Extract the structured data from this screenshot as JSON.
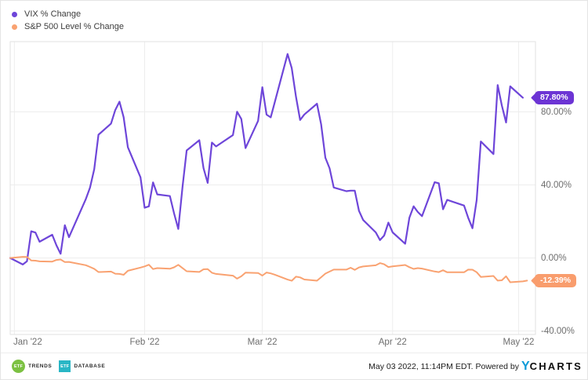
{
  "legend_note": "two clickable legend entries top-left",
  "chart_data": {
    "type": "line",
    "title": "",
    "xlabel": "",
    "ylabel": "",
    "grid": true,
    "legend_position": "top-left",
    "x_axis": {
      "min": "2021-12-31",
      "max": "2022-05-05",
      "ticks": [
        {
          "label": "Jan '22",
          "date": "2022-01-01"
        },
        {
          "label": "Feb '22",
          "date": "2022-02-01"
        },
        {
          "label": "Mar '22",
          "date": "2022-03-01"
        },
        {
          "label": "Apr '22",
          "date": "2022-04-01"
        },
        {
          "label": "May '22",
          "date": "2022-05-01"
        }
      ]
    },
    "y_axis": {
      "min": -41.9,
      "max": 118.5,
      "ticks": [
        {
          "label": "80.00%",
          "value": 80
        },
        {
          "label": "40.00%",
          "value": 40
        },
        {
          "label": "0.00%",
          "value": 0
        },
        {
          "label": "-40.00%",
          "value": -40
        }
      ]
    },
    "series": [
      {
        "name": "VIX % Change",
        "color": "#6e46d9",
        "badge_color": "#6c34d4",
        "end_label": "87.80%",
        "points": [
          [
            "2021-12-31",
            0
          ],
          [
            "2022-01-03",
            -3.6
          ],
          [
            "2022-01-04",
            -1.8
          ],
          [
            "2022-01-05",
            14.6
          ],
          [
            "2022-01-06",
            13.9
          ],
          [
            "2022-01-07",
            8.9
          ],
          [
            "2022-01-10",
            12.7
          ],
          [
            "2022-01-11",
            6.9
          ],
          [
            "2022-01-12",
            2.3
          ],
          [
            "2022-01-13",
            17.9
          ],
          [
            "2022-01-14",
            11.4
          ],
          [
            "2022-01-18",
            32.3
          ],
          [
            "2022-01-19",
            38.5
          ],
          [
            "2022-01-20",
            48.6
          ],
          [
            "2022-01-21",
            67.5
          ],
          [
            "2022-01-24",
            73.6
          ],
          [
            "2022-01-25",
            81.0
          ],
          [
            "2022-01-26",
            85.6
          ],
          [
            "2022-01-27",
            77.1
          ],
          [
            "2022-01-28",
            60.6
          ],
          [
            "2022-01-31",
            44.2
          ],
          [
            "2022-02-01",
            27.5
          ],
          [
            "2022-02-02",
            28.3
          ],
          [
            "2022-02-03",
            41.4
          ],
          [
            "2022-02-04",
            34.8
          ],
          [
            "2022-02-07",
            33.9
          ],
          [
            "2022-02-08",
            24.5
          ],
          [
            "2022-02-09",
            15.9
          ],
          [
            "2022-02-10",
            38.9
          ],
          [
            "2022-02-11",
            58.9
          ],
          [
            "2022-02-14",
            64.5
          ],
          [
            "2022-02-15",
            49.2
          ],
          [
            "2022-02-16",
            41.1
          ],
          [
            "2022-02-17",
            63.2
          ],
          [
            "2022-02-18",
            61.1
          ],
          [
            "2022-02-22",
            67.3
          ],
          [
            "2022-02-23",
            80.1
          ],
          [
            "2022-02-24",
            76.1
          ],
          [
            "2022-02-25",
            60.2
          ],
          [
            "2022-02-28",
            75.1
          ],
          [
            "2022-03-01",
            93.5
          ],
          [
            "2022-03-02",
            78.5
          ],
          [
            "2022-03-03",
            77.0
          ],
          [
            "2022-03-04",
            85.7
          ],
          [
            "2022-03-07",
            111.7
          ],
          [
            "2022-03-08",
            104.0
          ],
          [
            "2022-03-09",
            88.4
          ],
          [
            "2022-03-10",
            75.6
          ],
          [
            "2022-03-11",
            78.6
          ],
          [
            "2022-03-14",
            84.5
          ],
          [
            "2022-03-15",
            73.2
          ],
          [
            "2022-03-16",
            54.9
          ],
          [
            "2022-03-17",
            49.1
          ],
          [
            "2022-03-18",
            38.6
          ],
          [
            "2022-03-21",
            36.6
          ],
          [
            "2022-03-22",
            36.9
          ],
          [
            "2022-03-23",
            36.9
          ],
          [
            "2022-03-24",
            25.8
          ],
          [
            "2022-03-25",
            20.8
          ],
          [
            "2022-03-28",
            14.0
          ],
          [
            "2022-03-29",
            9.8
          ],
          [
            "2022-03-30",
            12.3
          ],
          [
            "2022-03-31",
            19.4
          ],
          [
            "2022-04-01",
            14.0
          ],
          [
            "2022-04-04",
            7.8
          ],
          [
            "2022-04-05",
            22.1
          ],
          [
            "2022-04-06",
            28.3
          ],
          [
            "2022-04-07",
            25.2
          ],
          [
            "2022-04-08",
            22.9
          ],
          [
            "2022-04-11",
            41.5
          ],
          [
            "2022-04-12",
            40.9
          ],
          [
            "2022-04-13",
            26.7
          ],
          [
            "2022-04-14",
            31.8
          ],
          [
            "2022-04-18",
            28.7
          ],
          [
            "2022-04-19",
            22.0
          ],
          [
            "2022-04-20",
            16.3
          ],
          [
            "2022-04-21",
            31.7
          ],
          [
            "2022-04-22",
            63.8
          ],
          [
            "2022-04-25",
            56.9
          ],
          [
            "2022-04-26",
            94.7
          ],
          [
            "2022-04-27",
            83.5
          ],
          [
            "2022-04-28",
            74.2
          ],
          [
            "2022-04-29",
            94.0
          ],
          [
            "2022-05-02",
            87.8
          ]
        ]
      },
      {
        "name": "S&P 500 Level % Change",
        "color": "#f9a271",
        "badge_color": "#f99d6d",
        "end_label": "-12.39%",
        "points": [
          [
            "2021-12-31",
            0
          ],
          [
            "2022-01-03",
            0.64
          ],
          [
            "2022-01-04",
            0.57
          ],
          [
            "2022-01-05",
            -1.38
          ],
          [
            "2022-01-06",
            -1.47
          ],
          [
            "2022-01-07",
            -1.87
          ],
          [
            "2022-01-10",
            -2.01
          ],
          [
            "2022-01-11",
            -1.11
          ],
          [
            "2022-01-12",
            -0.84
          ],
          [
            "2022-01-13",
            -2.25
          ],
          [
            "2022-01-14",
            -2.17
          ],
          [
            "2022-01-18",
            -3.97
          ],
          [
            "2022-01-19",
            -4.9
          ],
          [
            "2022-01-20",
            -5.95
          ],
          [
            "2022-01-21",
            -7.73
          ],
          [
            "2022-01-24",
            -7.47
          ],
          [
            "2022-01-25",
            -8.6
          ],
          [
            "2022-01-26",
            -8.73
          ],
          [
            "2022-01-27",
            -9.22
          ],
          [
            "2022-01-28",
            -7.01
          ],
          [
            "2022-01-31",
            -5.26
          ],
          [
            "2022-02-01",
            -4.61
          ],
          [
            "2022-02-02",
            -3.71
          ],
          [
            "2022-02-03",
            -6.06
          ],
          [
            "2022-02-04",
            -5.57
          ],
          [
            "2022-02-07",
            -5.92
          ],
          [
            "2022-02-08",
            -5.13
          ],
          [
            "2022-02-09",
            -3.76
          ],
          [
            "2022-02-10",
            -5.5
          ],
          [
            "2022-02-11",
            -7.29
          ],
          [
            "2022-02-14",
            -7.65
          ],
          [
            "2022-02-15",
            -6.19
          ],
          [
            "2022-02-16",
            -6.11
          ],
          [
            "2022-02-17",
            -8.1
          ],
          [
            "2022-02-18",
            -8.76
          ],
          [
            "2022-02-22",
            -9.68
          ],
          [
            "2022-02-23",
            -11.34
          ],
          [
            "2022-02-24",
            -10.02
          ],
          [
            "2022-02-25",
            -8.0
          ],
          [
            "2022-02-28",
            -8.23
          ],
          [
            "2022-03-01",
            -9.65
          ],
          [
            "2022-03-02",
            -7.97
          ],
          [
            "2022-03-03",
            -8.45
          ],
          [
            "2022-03-04",
            -9.17
          ],
          [
            "2022-03-07",
            -11.86
          ],
          [
            "2022-03-08",
            -12.49
          ],
          [
            "2022-03-09",
            -10.25
          ],
          [
            "2022-03-10",
            -10.63
          ],
          [
            "2022-03-11",
            -11.79
          ],
          [
            "2022-03-14",
            -12.44
          ],
          [
            "2022-03-15",
            -10.57
          ],
          [
            "2022-03-16",
            -8.57
          ],
          [
            "2022-03-17",
            -7.44
          ],
          [
            "2022-03-18",
            -6.36
          ],
          [
            "2022-03-21",
            -6.4
          ],
          [
            "2022-03-22",
            -5.34
          ],
          [
            "2022-03-23",
            -6.5
          ],
          [
            "2022-03-24",
            -5.16
          ],
          [
            "2022-03-25",
            -4.68
          ],
          [
            "2022-03-28",
            -4.0
          ],
          [
            "2022-03-29",
            -2.82
          ],
          [
            "2022-03-30",
            -3.44
          ],
          [
            "2022-03-31",
            -4.95
          ],
          [
            "2022-04-01",
            -4.62
          ],
          [
            "2022-04-04",
            -3.85
          ],
          [
            "2022-04-05",
            -5.06
          ],
          [
            "2022-04-06",
            -5.98
          ],
          [
            "2022-04-07",
            -5.58
          ],
          [
            "2022-04-08",
            -5.83
          ],
          [
            "2022-04-11",
            -7.42
          ],
          [
            "2022-04-12",
            -7.74
          ],
          [
            "2022-04-13",
            -6.71
          ],
          [
            "2022-04-14",
            -7.84
          ],
          [
            "2022-04-18",
            -7.86
          ],
          [
            "2022-04-19",
            -6.38
          ],
          [
            "2022-04-20",
            -6.44
          ],
          [
            "2022-04-21",
            -7.82
          ],
          [
            "2022-04-22",
            -10.37
          ],
          [
            "2022-04-25",
            -9.86
          ],
          [
            "2022-04-26",
            -12.4
          ],
          [
            "2022-04-27",
            -12.22
          ],
          [
            "2022-04-28",
            -10.04
          ],
          [
            "2022-04-29",
            -13.31
          ],
          [
            "2022-05-02",
            -12.82
          ],
          [
            "2022-05-03",
            -12.39
          ]
        ]
      }
    ],
    "colors": {
      "grid": "#ededed",
      "plot_border": "#e2e2e2",
      "axis_text": "#6e6e6e"
    }
  },
  "footer": {
    "logos": [
      {
        "name": "ETF Trends",
        "icon_text": "ETF",
        "label": "TRENDS",
        "color": "#7cc142"
      },
      {
        "name": "ETF Database",
        "icon_text": "ETF",
        "label": "DATABASE",
        "color": "#29b6c5"
      }
    ],
    "attribution": "May 03 2022, 11:14PM EDT. Powered by",
    "ycharts_y": "Y",
    "ycharts_rest": "CHARTS",
    "ycharts_blue": "#0a9ad8"
  }
}
